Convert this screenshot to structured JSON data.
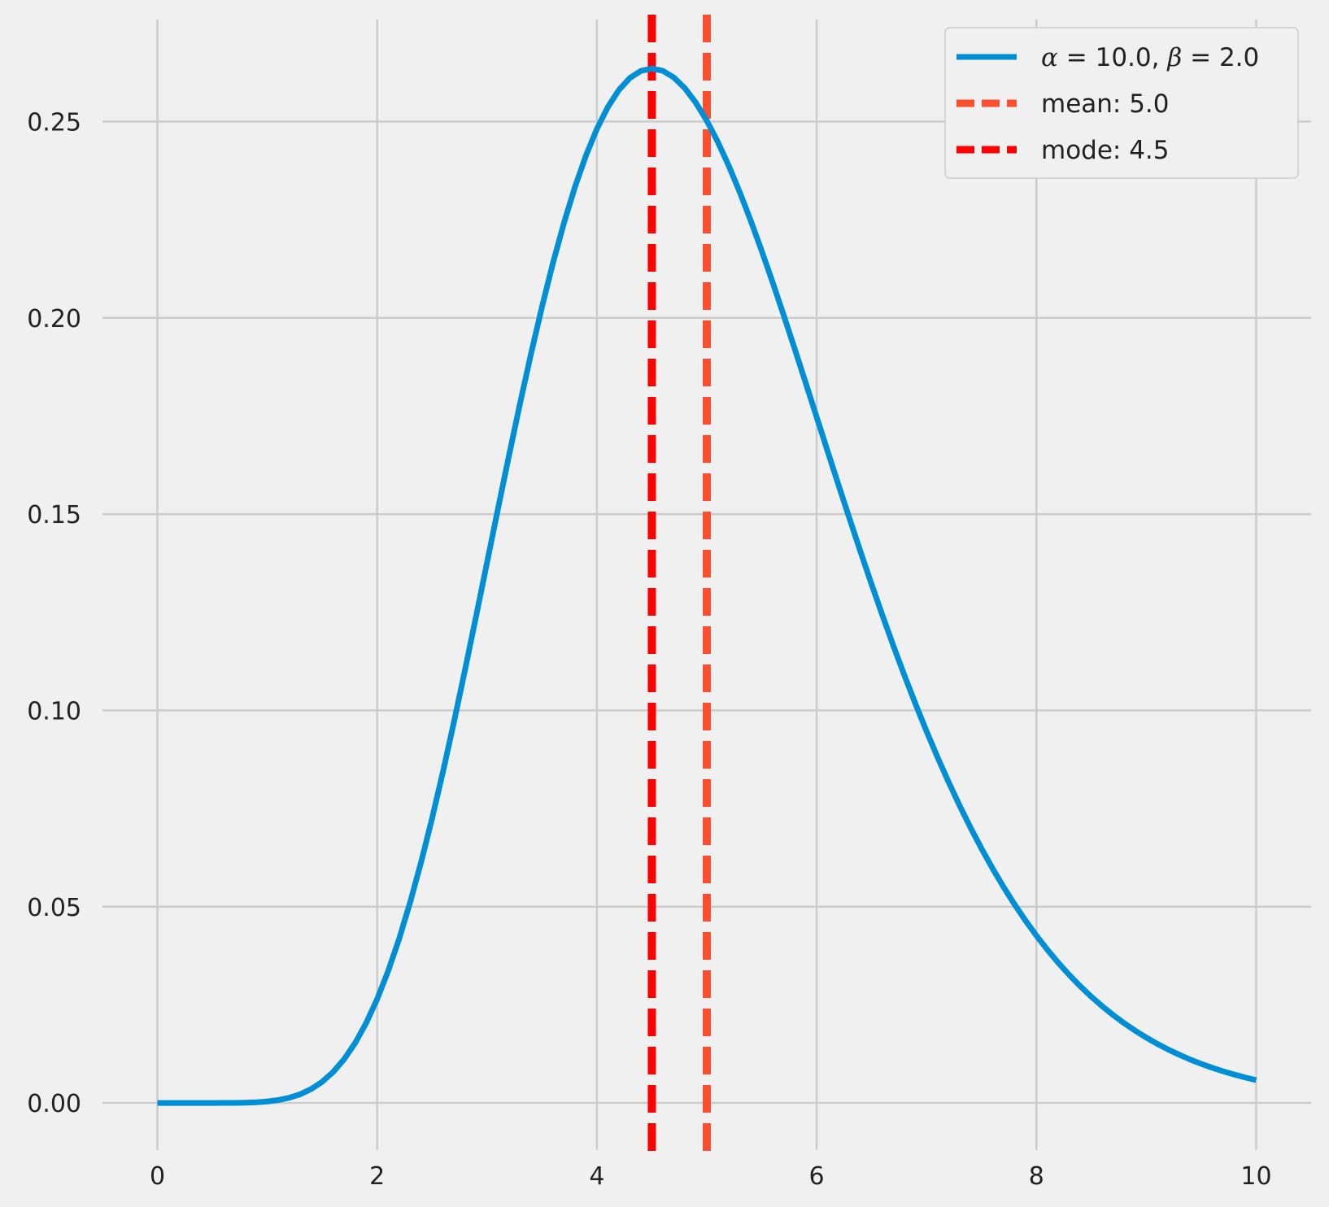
{
  "chart_data": {
    "type": "line",
    "xlim": [
      -0.5,
      10.5
    ],
    "ylim": [
      -0.012,
      0.276
    ],
    "x_ticks": [
      0,
      2,
      4,
      6,
      8,
      10
    ],
    "y_ticks": [
      0.0,
      0.05,
      0.1,
      0.15,
      0.2,
      0.25
    ],
    "x_tick_labels": [
      "0",
      "2",
      "4",
      "6",
      "8",
      "10"
    ],
    "y_tick_labels": [
      "0.00",
      "0.05",
      "0.10",
      "0.15",
      "0.20",
      "0.25"
    ],
    "grid": true,
    "legend_position": "top-right",
    "series": [
      {
        "name_parts": {
          "alpha_sym": "α",
          "alpha_val": " = 10.0, ",
          "beta_sym": "β",
          "beta_val": " = 2.0"
        },
        "style": "solid",
        "color": "#008fd5",
        "distribution": {
          "family": "gamma",
          "shape": 10.0,
          "scale": 0.5
        },
        "x_range": [
          0,
          10
        ]
      }
    ],
    "vlines": [
      {
        "name": "mean: 5.0",
        "x": 5.0,
        "style": "dashed",
        "color": "#fc4f30"
      },
      {
        "name": "mode: 4.5",
        "x": 4.5,
        "style": "dashed",
        "color": "#ff0000"
      }
    ]
  }
}
